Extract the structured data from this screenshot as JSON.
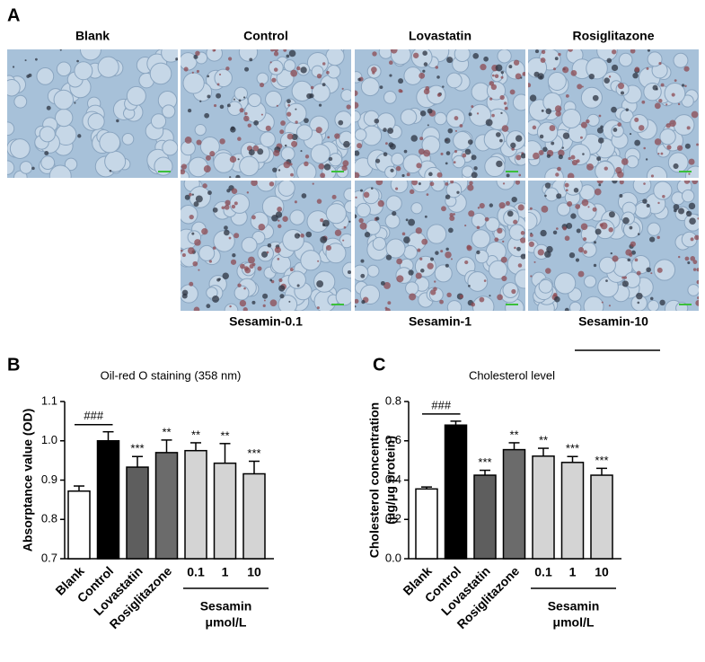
{
  "panel_a": {
    "label": "A",
    "top_labels": [
      "Blank",
      "Control",
      "Lovastatin",
      "Rosiglitazone"
    ],
    "bottom_labels": [
      "Sesamin-0.1",
      "Sesamin-1",
      "Sesamin-10"
    ]
  },
  "chart_data": [
    {
      "type": "bar",
      "panel": "B",
      "title": "Oil-red O staining (358 nm)",
      "y_label": [
        "Absorptance value (OD)"
      ],
      "categories": [
        "Blank",
        "Control",
        "Lovastatin",
        "Rosiglitazone",
        "0.1",
        "1",
        "10"
      ],
      "values": [
        0.872,
        1.0,
        0.933,
        0.97,
        0.975,
        0.943,
        0.916
      ],
      "errors": [
        0.013,
        0.023,
        0.027,
        0.032,
        0.02,
        0.05,
        0.032
      ],
      "colors": [
        "#ffffff",
        "#000000",
        "#5e5e5e",
        "#6b6b6b",
        "#d4d4d4",
        "#d4d4d4",
        "#d4d4d4"
      ],
      "significance": [
        null,
        null,
        "***",
        "**",
        "**",
        "**",
        "***"
      ],
      "bracket_label": "###",
      "group_label": "Sesamin",
      "group_unit": "μmol/L",
      "ylim": [
        0.7,
        1.1
      ],
      "yticks": [
        0.7,
        0.8,
        0.9,
        {
          "value": 1,
          "label": "1.0"
        },
        1.1
      ]
    },
    {
      "type": "bar",
      "panel": "C",
      "title": "Cholesterol level",
      "y_label": [
        "Cholesterol concentration",
        "(μg/μg protein)"
      ],
      "categories": [
        "Blank",
        "Control",
        "Lovastatin",
        "Rosiglitazone",
        "0.1",
        "1",
        "10"
      ],
      "values": [
        0.355,
        0.68,
        0.425,
        0.555,
        0.522,
        0.49,
        0.425
      ],
      "errors": [
        0.01,
        0.02,
        0.025,
        0.035,
        0.04,
        0.03,
        0.035
      ],
      "colors": [
        "#ffffff",
        "#000000",
        "#5e5e5e",
        "#6b6b6b",
        "#d4d4d4",
        "#d4d4d4",
        "#d4d4d4"
      ],
      "significance": [
        null,
        null,
        "***",
        "**",
        "**",
        "***",
        "***"
      ],
      "bracket_label": "###",
      "group_label": "Sesamin",
      "group_unit": "μmol/L",
      "ylim": [
        0,
        0.8
      ],
      "yticks": [
        {
          "value": 0,
          "label": "0.0"
        },
        0.2,
        0.4,
        0.6,
        0.8
      ]
    }
  ]
}
